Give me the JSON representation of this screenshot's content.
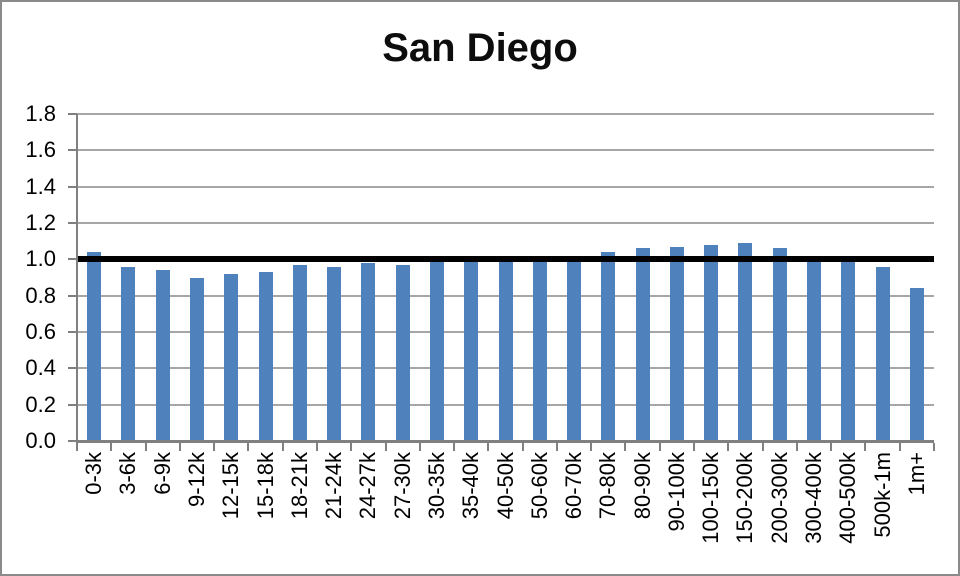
{
  "chart_data": {
    "type": "bar",
    "title": "San Diego",
    "categories": [
      "0-3k",
      "3-6k",
      "6-9k",
      "9-12k",
      "12-15k",
      "15-18k",
      "18-21k",
      "21-24k",
      "24-27k",
      "27-30k",
      "30-35k",
      "35-40k",
      "40-50k",
      "50-60k",
      "60-70k",
      "70-80k",
      "80-90k",
      "90-100k",
      "100-150k",
      "150-200k",
      "200-300k",
      "300-400k",
      "400-500k",
      "500k-1m",
      "1m+"
    ],
    "values": [
      1.04,
      0.96,
      0.94,
      0.9,
      0.92,
      0.93,
      0.97,
      0.96,
      0.98,
      0.97,
      0.99,
      0.99,
      1.02,
      0.99,
      1.02,
      1.04,
      1.06,
      1.07,
      1.08,
      1.09,
      1.06,
      1.0,
      0.99,
      0.96,
      0.84
    ],
    "xlabel": "",
    "ylabel": "",
    "ylim": [
      0.0,
      1.8
    ],
    "ytick_step": 0.2,
    "ytick_labels": [
      "0.0",
      "0.2",
      "0.4",
      "0.6",
      "0.8",
      "1.0",
      "1.2",
      "1.4",
      "1.6",
      "1.8"
    ],
    "grid": true,
    "legend": false,
    "x_label_rotation_deg": 90,
    "reference_line": {
      "y": 1.0,
      "label": ""
    },
    "colors": {
      "bar": "#4f81bd",
      "reference_line": "#000000",
      "gridline": "#a6a6a6",
      "axis": "#808080",
      "title_text": "#0d0d0d",
      "label_text": "#000000",
      "frame_border": "#8a8a8a",
      "background": "#ffffff"
    }
  }
}
